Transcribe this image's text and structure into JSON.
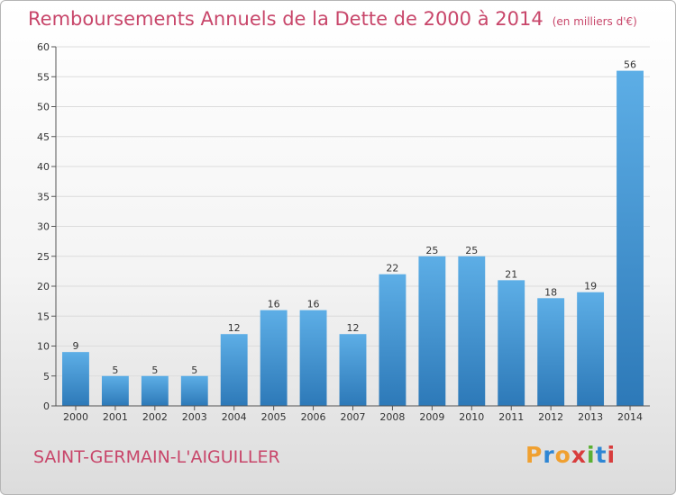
{
  "title": "Remboursements Annuels de la Dette de 2000 à 2014",
  "unit": "(en milliers d'€)",
  "commune": "SAINT-GERMAIN-L'AIGUILLER",
  "logo": {
    "text": "Proxiti",
    "letter_colors": [
      "#f0a030",
      "#2e86d4",
      "#f0a030",
      "#d83c3c",
      "#5ab033",
      "#2e86d4",
      "#d83c3c"
    ]
  },
  "colors": {
    "title": "#c8466a",
    "bar_light": "#5daee6",
    "bar_dark": "#2d79b8"
  },
  "chart_data": {
    "type": "bar",
    "categories": [
      "2000",
      "2001",
      "2002",
      "2003",
      "2004",
      "2005",
      "2006",
      "2007",
      "2008",
      "2009",
      "2010",
      "2011",
      "2012",
      "2013",
      "2014"
    ],
    "values": [
      9,
      5,
      5,
      5,
      12,
      16,
      16,
      12,
      22,
      25,
      25,
      21,
      18,
      19,
      56
    ],
    "title": "Remboursements Annuels de la Dette de 2000 à 2014",
    "ylim": [
      0,
      60
    ],
    "yticks": [
      0,
      5,
      10,
      15,
      20,
      25,
      30,
      35,
      40,
      45,
      50,
      55,
      60
    ],
    "grid": true
  }
}
